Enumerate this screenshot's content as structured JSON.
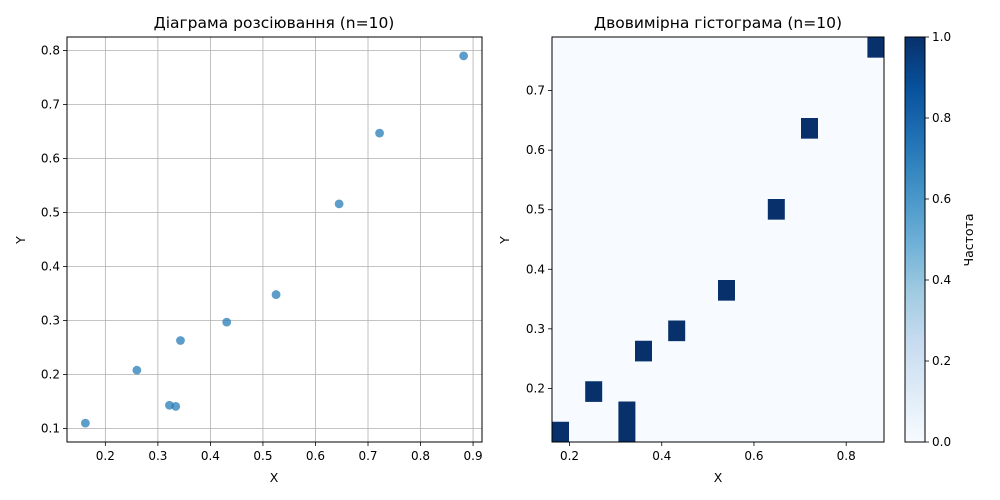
{
  "chart_data": [
    {
      "type": "scatter",
      "title": "Діаграма розсіювання (n=10)",
      "xlabel": "X",
      "ylabel": "Y",
      "xlim": [
        0.127,
        0.917
      ],
      "ylim": [
        0.075,
        0.825
      ],
      "xticks": [
        0.2,
        0.3,
        0.4,
        0.5,
        0.6,
        0.7,
        0.8,
        0.9
      ],
      "xtick_labels": [
        "0.2",
        "0.3",
        "0.4",
        "0.5",
        "0.6",
        "0.7",
        "0.8",
        "0.9"
      ],
      "yticks": [
        0.1,
        0.2,
        0.3,
        0.4,
        0.5,
        0.6,
        0.7,
        0.8
      ],
      "ytick_labels": [
        "0.1",
        "0.2",
        "0.3",
        "0.4",
        "0.5",
        "0.6",
        "0.7",
        "0.8"
      ],
      "grid": true,
      "color": "#1f77b4",
      "points": [
        {
          "x": 0.162,
          "y": 0.11
        },
        {
          "x": 0.26,
          "y": 0.208
        },
        {
          "x": 0.322,
          "y": 0.143
        },
        {
          "x": 0.334,
          "y": 0.141
        },
        {
          "x": 0.343,
          "y": 0.263
        },
        {
          "x": 0.431,
          "y": 0.297
        },
        {
          "x": 0.525,
          "y": 0.348
        },
        {
          "x": 0.645,
          "y": 0.516
        },
        {
          "x": 0.722,
          "y": 0.647
        },
        {
          "x": 0.882,
          "y": 0.79
        }
      ]
    },
    {
      "type": "heatmap",
      "title": "Двовимірна гістограма (n=10)",
      "xlabel": "X",
      "ylabel": "Y",
      "xlim": [
        0.162,
        0.882
      ],
      "ylim": [
        0.11,
        0.79
      ],
      "xticks": [
        0.2,
        0.4,
        0.6,
        0.8
      ],
      "xtick_labels": [
        "0.2",
        "0.4",
        "0.6",
        "0.8"
      ],
      "yticks": [
        0.2,
        0.3,
        0.4,
        0.5,
        0.6,
        0.7
      ],
      "ytick_labels": [
        "0.2",
        "0.3",
        "0.4",
        "0.5",
        "0.6",
        "0.7"
      ],
      "colormap": "Blues",
      "low_color": "#f7fbff",
      "high_color": "#08306b",
      "colorbar": {
        "label": "Частота",
        "range": [
          0,
          1
        ],
        "ticks": [
          0.0,
          0.2,
          0.4,
          0.6,
          0.8,
          1.0
        ],
        "tick_labels": [
          "0.0",
          "0.2",
          "0.4",
          "0.6",
          "0.8",
          "1.0"
        ]
      },
      "bins": 20,
      "filled_bins": [
        {
          "ix": 0,
          "iy": 0,
          "count": 1
        },
        {
          "ix": 2,
          "iy": 2,
          "count": 1
        },
        {
          "ix": 4,
          "iy": 0,
          "count": 1
        },
        {
          "ix": 4,
          "iy": 1,
          "count": 1
        },
        {
          "ix": 5,
          "iy": 4,
          "count": 1
        },
        {
          "ix": 7,
          "iy": 5,
          "count": 1
        },
        {
          "ix": 10,
          "iy": 7,
          "count": 1
        },
        {
          "ix": 13,
          "iy": 11,
          "count": 1
        },
        {
          "ix": 15,
          "iy": 15,
          "count": 1
        },
        {
          "ix": 19,
          "iy": 19,
          "count": 1
        }
      ]
    }
  ]
}
